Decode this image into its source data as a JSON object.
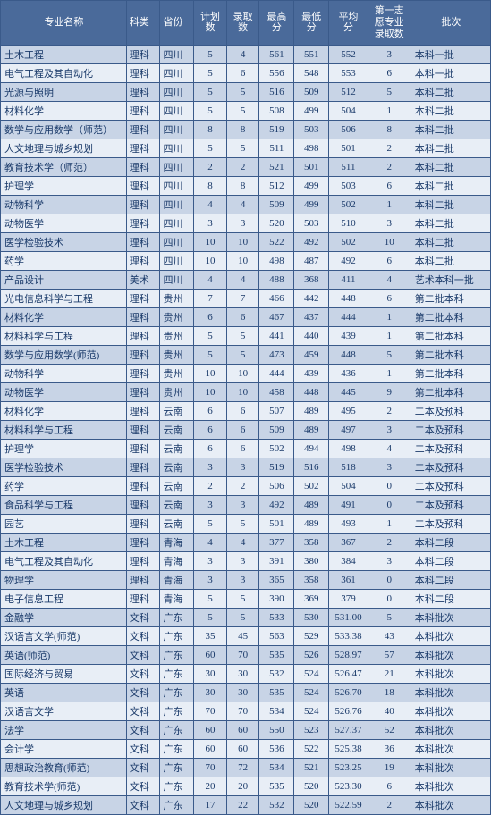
{
  "columns": [
    {
      "key": "name",
      "label": "专业名称"
    },
    {
      "key": "type",
      "label": "科类"
    },
    {
      "key": "prov",
      "label": "省份"
    },
    {
      "key": "plan",
      "label": "计划\n数"
    },
    {
      "key": "enr",
      "label": "录取\n数"
    },
    {
      "key": "max",
      "label": "最高\n分"
    },
    {
      "key": "min",
      "label": "最低\n分"
    },
    {
      "key": "avg",
      "label": "平均\n分"
    },
    {
      "key": "first",
      "label": "第一志\n愿专业\n录取数"
    },
    {
      "key": "batch",
      "label": "批次"
    }
  ],
  "rows": [
    [
      "土木工程",
      "理科",
      "四川",
      "5",
      "4",
      "561",
      "551",
      "552",
      "3",
      "本科一批"
    ],
    [
      "电气工程及其自动化",
      "理科",
      "四川",
      "5",
      "6",
      "556",
      "548",
      "553",
      "6",
      "本科一批"
    ],
    [
      "光源与照明",
      "理科",
      "四川",
      "5",
      "5",
      "516",
      "509",
      "512",
      "5",
      "本科二批"
    ],
    [
      "材料化学",
      "理科",
      "四川",
      "5",
      "5",
      "508",
      "499",
      "504",
      "1",
      "本科二批"
    ],
    [
      "数学与应用数学（师范）",
      "理科",
      "四川",
      "8",
      "8",
      "519",
      "503",
      "506",
      "8",
      "本科二批"
    ],
    [
      "人文地理与城乡规划",
      "理科",
      "四川",
      "5",
      "5",
      "511",
      "498",
      "501",
      "2",
      "本科二批"
    ],
    [
      "教育技术学（师范）",
      "理科",
      "四川",
      "2",
      "2",
      "521",
      "501",
      "511",
      "2",
      "本科二批"
    ],
    [
      "护理学",
      "理科",
      "四川",
      "8",
      "8",
      "512",
      "499",
      "503",
      "6",
      "本科二批"
    ],
    [
      "动物科学",
      "理科",
      "四川",
      "4",
      "4",
      "509",
      "499",
      "502",
      "1",
      "本科二批"
    ],
    [
      "动物医学",
      "理科",
      "四川",
      "3",
      "3",
      "520",
      "503",
      "510",
      "3",
      "本科二批"
    ],
    [
      "医学检验技术",
      "理科",
      "四川",
      "10",
      "10",
      "522",
      "492",
      "502",
      "10",
      "本科二批"
    ],
    [
      "药学",
      "理科",
      "四川",
      "10",
      "10",
      "498",
      "487",
      "492",
      "6",
      "本科二批"
    ],
    [
      "产品设计",
      "美术",
      "四川",
      "4",
      "4",
      "488",
      "368",
      "411",
      "4",
      "艺术本科一批"
    ],
    [
      "光电信息科学与工程",
      "理科",
      "贵州",
      "7",
      "7",
      "466",
      "442",
      "448",
      "6",
      "第二批本科"
    ],
    [
      "材料化学",
      "理科",
      "贵州",
      "6",
      "6",
      "467",
      "437",
      "444",
      "1",
      "第二批本科"
    ],
    [
      "材料科学与工程",
      "理科",
      "贵州",
      "5",
      "5",
      "441",
      "440",
      "439",
      "1",
      "第二批本科"
    ],
    [
      "数学与应用数学(师范)",
      "理科",
      "贵州",
      "5",
      "5",
      "473",
      "459",
      "448",
      "5",
      "第二批本科"
    ],
    [
      "动物科学",
      "理科",
      "贵州",
      "10",
      "10",
      "444",
      "439",
      "436",
      "1",
      "第二批本科"
    ],
    [
      "动物医学",
      "理科",
      "贵州",
      "10",
      "10",
      "458",
      "448",
      "445",
      "9",
      "第二批本科"
    ],
    [
      "材料化学",
      "理科",
      "云南",
      "6",
      "6",
      "507",
      "489",
      "495",
      "2",
      "二本及预科"
    ],
    [
      "材料科学与工程",
      "理科",
      "云南",
      "6",
      "6",
      "509",
      "489",
      "497",
      "3",
      "二本及预科"
    ],
    [
      "护理学",
      "理科",
      "云南",
      "6",
      "6",
      "502",
      "494",
      "498",
      "4",
      "二本及预科"
    ],
    [
      "医学检验技术",
      "理科",
      "云南",
      "3",
      "3",
      "519",
      "516",
      "518",
      "3",
      "二本及预科"
    ],
    [
      "药学",
      "理科",
      "云南",
      "2",
      "2",
      "506",
      "502",
      "504",
      "0",
      "二本及预科"
    ],
    [
      "食品科学与工程",
      "理科",
      "云南",
      "3",
      "3",
      "492",
      "489",
      "491",
      "0",
      "二本及预科"
    ],
    [
      "园艺",
      "理科",
      "云南",
      "5",
      "5",
      "501",
      "489",
      "493",
      "1",
      "二本及预科"
    ],
    [
      "土木工程",
      "理科",
      "青海",
      "4",
      "4",
      "377",
      "358",
      "367",
      "2",
      "本科二段"
    ],
    [
      "电气工程及其自动化",
      "理科",
      "青海",
      "3",
      "3",
      "391",
      "380",
      "384",
      "3",
      "本科二段"
    ],
    [
      "物理学",
      "理科",
      "青海",
      "3",
      "3",
      "365",
      "358",
      "361",
      "0",
      "本科二段"
    ],
    [
      "电子信息工程",
      "理科",
      "青海",
      "5",
      "5",
      "390",
      "369",
      "379",
      "0",
      "本科二段"
    ],
    [
      "金融学",
      "文科",
      "广东",
      "5",
      "5",
      "533",
      "530",
      "531.00",
      "5",
      "本科批次"
    ],
    [
      "汉语言文学(师范)",
      "文科",
      "广东",
      "35",
      "45",
      "563",
      "529",
      "533.38",
      "43",
      "本科批次"
    ],
    [
      "英语(师范)",
      "文科",
      "广东",
      "60",
      "70",
      "535",
      "526",
      "528.97",
      "57",
      "本科批次"
    ],
    [
      "国际经济与贸易",
      "文科",
      "广东",
      "30",
      "30",
      "532",
      "524",
      "526.47",
      "21",
      "本科批次"
    ],
    [
      "英语",
      "文科",
      "广东",
      "30",
      "30",
      "535",
      "524",
      "526.70",
      "18",
      "本科批次"
    ],
    [
      "汉语言文学",
      "文科",
      "广东",
      "70",
      "70",
      "534",
      "524",
      "526.76",
      "40",
      "本科批次"
    ],
    [
      "法学",
      "文科",
      "广东",
      "60",
      "60",
      "550",
      "523",
      "527.37",
      "52",
      "本科批次"
    ],
    [
      "会计学",
      "文科",
      "广东",
      "60",
      "60",
      "536",
      "522",
      "525.38",
      "36",
      "本科批次"
    ],
    [
      "思想政治教育(师范)",
      "文科",
      "广东",
      "70",
      "72",
      "534",
      "521",
      "523.25",
      "19",
      "本科批次"
    ],
    [
      "教育技术学(师范)",
      "文科",
      "广东",
      "20",
      "20",
      "535",
      "520",
      "523.30",
      "6",
      "本科批次"
    ],
    [
      "人文地理与城乡规划",
      "文科",
      "广东",
      "17",
      "22",
      "532",
      "520",
      "522.59",
      "2",
      "本科批次"
    ]
  ]
}
